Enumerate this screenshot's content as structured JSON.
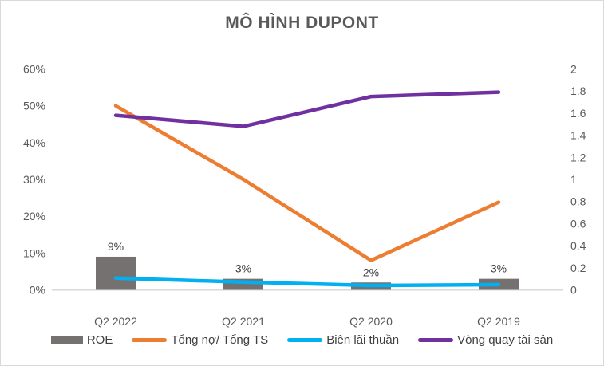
{
  "title": "MÔ HÌNH DUPONT",
  "chart_data": {
    "type": "combo-bar-line",
    "title": "MÔ HÌNH DUPONT",
    "categories": [
      "Q2 2022",
      "Q2 2021",
      "Q2 2020",
      "Q2 2019"
    ],
    "series": [
      {
        "name": "ROE",
        "type": "bar",
        "axis": "left",
        "color": "#767171",
        "values": [
          9,
          3,
          2,
          3
        ],
        "data_labels": [
          "9%",
          "3%",
          "2%",
          "3%"
        ]
      },
      {
        "name": "Tổng nợ/ Tổng TS",
        "type": "line",
        "axis": "left",
        "color": "#ED7D31",
        "values": [
          50,
          30,
          8,
          23.8
        ]
      },
      {
        "name": "Biên lãi thuần",
        "type": "line",
        "axis": "left",
        "color": "#00B0F0",
        "values": [
          3.2,
          2.1,
          1.2,
          1.4
        ]
      },
      {
        "name": "Vòng quay tài sản",
        "type": "line",
        "axis": "right",
        "color": "#7030A0",
        "values": [
          1.58,
          1.48,
          1.75,
          1.79
        ]
      }
    ],
    "axes": {
      "left": {
        "min": 0,
        "max": 60,
        "step": 10,
        "tick_labels": [
          "0%",
          "10%",
          "20%",
          "30%",
          "40%",
          "50%",
          "60%"
        ]
      },
      "right": {
        "min": 0,
        "max": 2,
        "step": 0.2,
        "tick_labels": [
          "0",
          "0.2",
          "0.4",
          "0.6",
          "0.8",
          "1",
          "1.2",
          "1.4",
          "1.6",
          "1.8",
          "2"
        ]
      }
    },
    "grid": false,
    "legend_position": "bottom",
    "text_colors": {
      "axis": "#595959",
      "data_label": "#404040",
      "axis_line": "#D9D9D9"
    }
  }
}
